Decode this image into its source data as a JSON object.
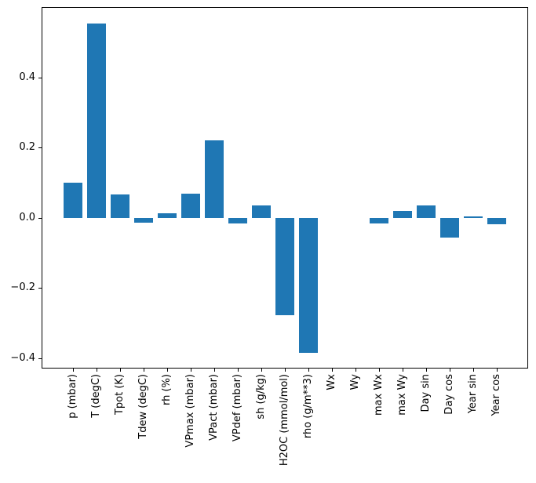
{
  "figure": {
    "background_color": "#ffffff",
    "title": ""
  },
  "chart_data": {
    "type": "bar",
    "title": "",
    "xlabel": "",
    "ylabel": "",
    "grid": false,
    "legend": null,
    "bar_color": "#1f77b4",
    "axis_color": "#000000",
    "categories": [
      "p (mbar)",
      "T (degC)",
      "Tpot (K)",
      "Tdew (degC)",
      "rh (%)",
      "VPmax (mbar)",
      "VPact (mbar)",
      "VPdef (mbar)",
      "sh (g/kg)",
      "H2OC (mmol/mol)",
      "rho (g/m**3)",
      "Wx",
      "Wy",
      "max Wx",
      "max Wy",
      "Day sin",
      "Day cos",
      "Year sin",
      "Year cos"
    ],
    "values": [
      0.1,
      0.553,
      0.065,
      -0.015,
      0.013,
      0.068,
      0.22,
      -0.017,
      0.035,
      -0.278,
      -0.385,
      0.0,
      0.0,
      -0.017,
      0.02,
      0.035,
      -0.058,
      0.003,
      -0.02
    ],
    "xtick_rotation_degrees": 90,
    "ylim": [
      -0.43,
      0.6
    ],
    "yticks": [
      {
        "value": 0.4,
        "label": "0.4"
      },
      {
        "value": 0.2,
        "label": "0.2"
      },
      {
        "value": 0.0,
        "label": "0.0"
      },
      {
        "value": -0.2,
        "label": "−0.2"
      },
      {
        "value": -0.4,
        "label": "−0.4"
      }
    ]
  }
}
